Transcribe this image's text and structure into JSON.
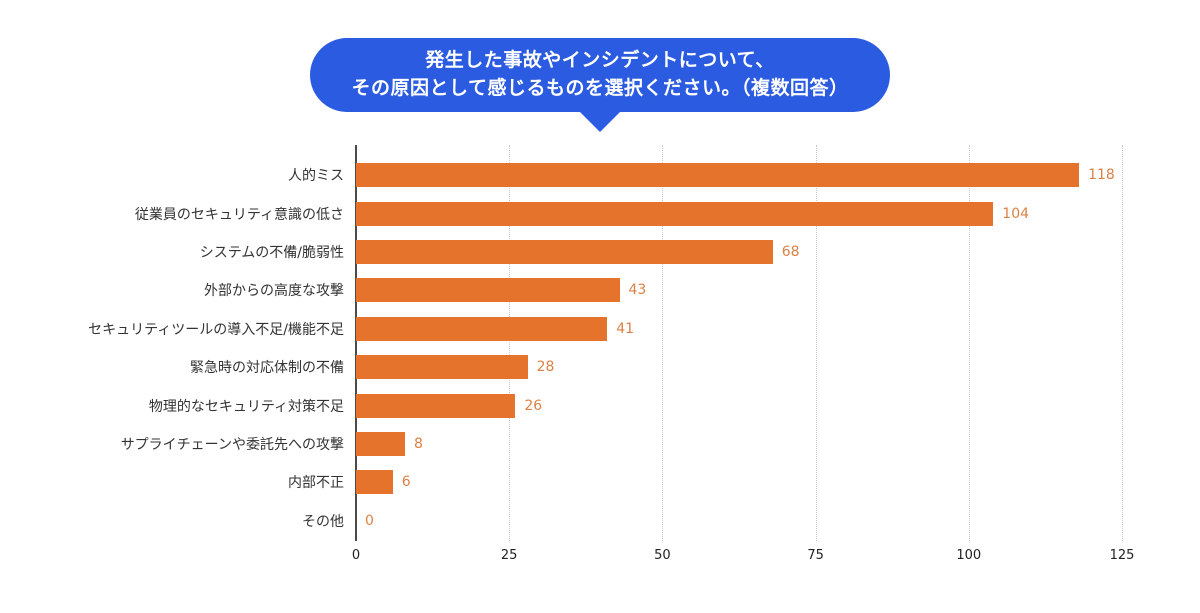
{
  "bubble": {
    "line1": "発生した事故やインシデントについて、",
    "line2": "その原因として感じるものを選択ください。（複数回答）",
    "background_color": "#2B5BE0",
    "text_color": "#FFFFFF"
  },
  "chart_data": {
    "type": "bar",
    "orientation": "horizontal",
    "title": "発生した事故やインシデントについて、その原因として感じるものを選択ください。（複数回答）",
    "categories": [
      "人的ミス",
      "従業員のセキュリティ意識の低さ",
      "システムの不備/脆弱性",
      "外部からの高度な攻撃",
      "セキュリティツールの導入不足/機能不足",
      "緊急時の対応体制の不備",
      "物理的なセキュリティ対策不足",
      "サプライチェーンや委託先への攻撃",
      "内部不正",
      "その他"
    ],
    "values": [
      118,
      104,
      68,
      43,
      41,
      28,
      26,
      8,
      6,
      0
    ],
    "x_ticks": [
      0,
      25,
      50,
      75,
      100,
      125
    ],
    "xlim": [
      0,
      125
    ],
    "bar_color": "#E6732C",
    "value_label_color": "#DC8145",
    "grid": "dotted-vertical",
    "legend": "none",
    "xlabel": "",
    "ylabel": ""
  }
}
